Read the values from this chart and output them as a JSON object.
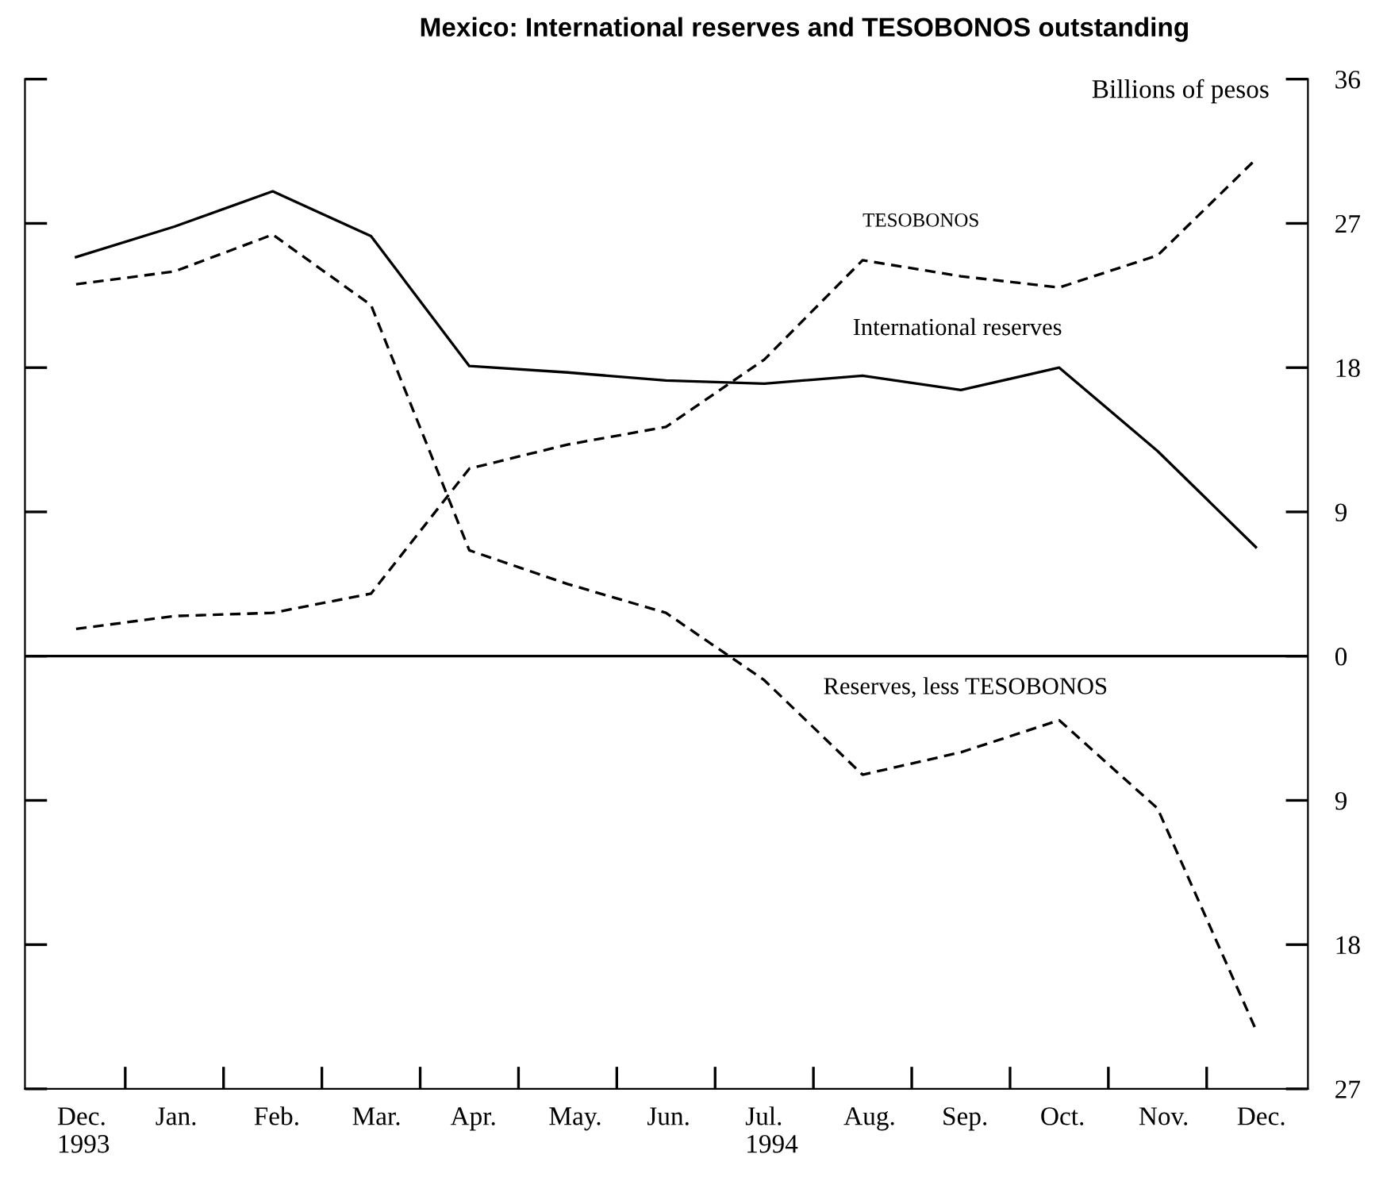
{
  "chart_data": {
    "type": "line",
    "title": "Mexico: International reserves and TESOBONOS outstanding",
    "categories": [
      "Dec.\n1993",
      "Jan.",
      "Feb.",
      "Mar.",
      "Apr.",
      "May.",
      "Jun.",
      "Jul.\n1994",
      "Aug.",
      "Sep.",
      "Oct.",
      "Nov.",
      "Dec."
    ],
    "series": [
      {
        "name": "International reserves",
        "color": "#000000",
        "line_style": "solid",
        "values": [
          24.9,
          26.8,
          29.0,
          26.2,
          18.1,
          17.7,
          17.2,
          17.0,
          17.5,
          16.6,
          18.0,
          12.8,
          6.8
        ]
      },
      {
        "name": "TESOBONOS",
        "color": "#000000",
        "line_style": "dashed",
        "values": [
          1.7,
          2.5,
          2.7,
          3.9,
          11.7,
          13.2,
          14.3,
          18.5,
          24.7,
          23.7,
          23.0,
          25.0,
          31.0
        ]
      },
      {
        "name": "Reserves, less TESOBONOS",
        "color": "#000000",
        "line_style": "dashed",
        "values": [
          23.2,
          24.0,
          26.3,
          21.9,
          6.6,
          4.5,
          2.7,
          -1.5,
          -7.4,
          -6.0,
          -4.0,
          -9.5,
          -23.3
        ]
      }
    ],
    "ylim": [
      -27,
      36
    ],
    "yticks": [
      {
        "value": -27,
        "label": "27"
      },
      {
        "value": -18,
        "label": "18"
      },
      {
        "value": -9,
        "label": "9"
      },
      0,
      9,
      18,
      27,
      36
    ],
    "ref_lines": [
      {
        "axis": "y",
        "value": 0
      }
    ],
    "annotations": [
      "Billions of pesos"
    ],
    "grid": false,
    "legend": false,
    "marker": "none"
  }
}
